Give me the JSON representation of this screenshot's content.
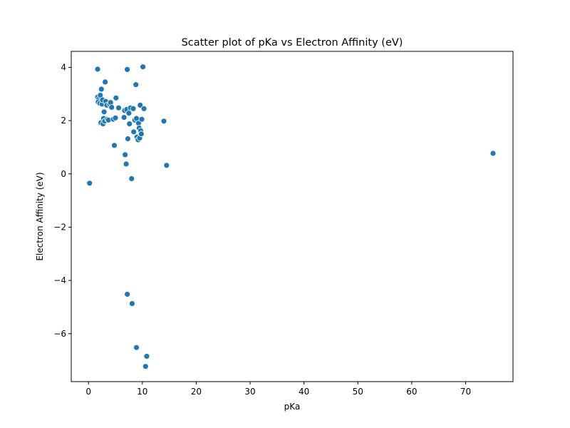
{
  "chart_data": {
    "type": "scatter",
    "title": "Scatter plot of pKa vs Electron Affinity (eV)",
    "xlabel": "pKa",
    "ylabel": "Electron Affinity (eV)",
    "xlim": [
      -3.2,
      78.8
    ],
    "ylim": [
      -7.8,
      4.6
    ],
    "xticks": [
      0,
      10,
      20,
      30,
      40,
      50,
      60,
      70
    ],
    "yticks": [
      -6,
      -4,
      -2,
      0,
      2,
      4
    ],
    "ytick_labels": [
      "−6",
      "−4",
      "−2",
      "0",
      "2",
      "4"
    ],
    "grid": false,
    "legend": "none",
    "color": "#1f77b4",
    "points": [
      [
        0.2,
        -0.35
      ],
      [
        1.7,
        3.93
      ],
      [
        1.7,
        2.88
      ],
      [
        1.9,
        2.8
      ],
      [
        1.8,
        2.7
      ],
      [
        2.1,
        2.65
      ],
      [
        2.2,
        2.95
      ],
      [
        2.3,
        1.92
      ],
      [
        2.4,
        3.18
      ],
      [
        2.5,
        2.62
      ],
      [
        2.6,
        2.78
      ],
      [
        2.7,
        1.88
      ],
      [
        2.8,
        2.08
      ],
      [
        2.9,
        2.33
      ],
      [
        3.0,
        1.98
      ],
      [
        3.1,
        3.45
      ],
      [
        3.2,
        2.72
      ],
      [
        3.4,
        2.58
      ],
      [
        3.5,
        2.05
      ],
      [
        3.7,
        2.02
      ],
      [
        3.9,
        2.62
      ],
      [
        4.1,
        2.68
      ],
      [
        4.3,
        2.5
      ],
      [
        4.6,
        2.05
      ],
      [
        4.8,
        1.07
      ],
      [
        5.0,
        2.1
      ],
      [
        5.1,
        2.85
      ],
      [
        5.6,
        2.48
      ],
      [
        6.6,
        2.12
      ],
      [
        6.7,
        2.38
      ],
      [
        6.8,
        0.72
      ],
      [
        7.0,
        0.37
      ],
      [
        7.1,
        2.42
      ],
      [
        7.2,
        3.92
      ],
      [
        7.3,
        1.32
      ],
      [
        7.2,
        -4.52
      ],
      [
        7.5,
        2.28
      ],
      [
        7.6,
        1.88
      ],
      [
        7.8,
        2.48
      ],
      [
        8.0,
        -0.18
      ],
      [
        8.1,
        -4.87
      ],
      [
        8.3,
        2.45
      ],
      [
        8.4,
        1.58
      ],
      [
        8.6,
        2.02
      ],
      [
        8.8,
        3.35
      ],
      [
        8.9,
        2.08
      ],
      [
        9.0,
        1.38
      ],
      [
        8.9,
        -6.52
      ],
      [
        9.2,
        1.28
      ],
      [
        9.3,
        1.9
      ],
      [
        9.4,
        1.72
      ],
      [
        9.5,
        1.35
      ],
      [
        9.6,
        2.58
      ],
      [
        9.7,
        1.62
      ],
      [
        9.8,
        1.5
      ],
      [
        9.9,
        2.05
      ],
      [
        10.1,
        4.02
      ],
      [
        10.3,
        2.45
      ],
      [
        10.6,
        -7.23
      ],
      [
        10.8,
        -6.85
      ],
      [
        14.0,
        1.98
      ],
      [
        14.5,
        0.32
      ],
      [
        75.1,
        0.77
      ]
    ]
  }
}
